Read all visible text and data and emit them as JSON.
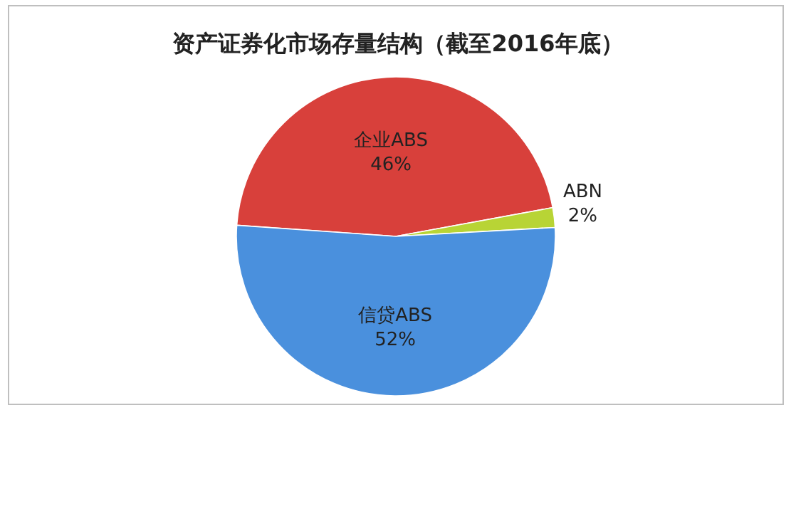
{
  "chart_data": {
    "type": "pie",
    "title": "资产证券化市场存量结构（截至2016年底）",
    "categories": [
      "企业ABS",
      "ABN",
      "信贷ABS"
    ],
    "values": [
      46,
      2,
      52
    ],
    "value_labels": [
      "46%",
      "2%",
      "52%"
    ],
    "colors": [
      "#d8403b",
      "#b8d435",
      "#4a90dd"
    ]
  }
}
